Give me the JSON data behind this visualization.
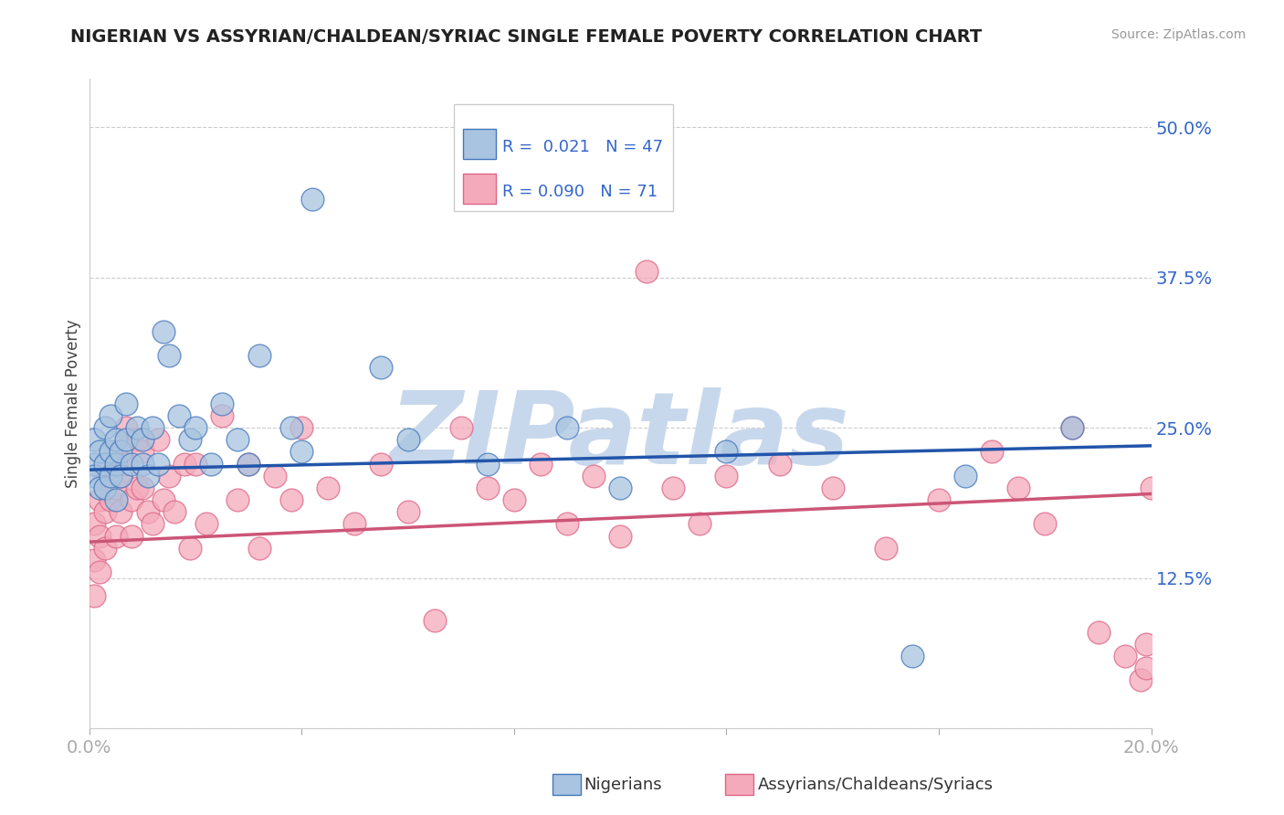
{
  "title": "NIGERIAN VS ASSYRIAN/CHALDEAN/SYRIAC SINGLE FEMALE POVERTY CORRELATION CHART",
  "source": "Source: ZipAtlas.com",
  "ylabel": "Single Female Poverty",
  "xlim": [
    0.0,
    0.2
  ],
  "ylim": [
    0.0,
    0.54
  ],
  "blue_R": 0.021,
  "blue_N": 47,
  "pink_R": 0.09,
  "pink_N": 71,
  "blue_color": "#A8C4E0",
  "pink_color": "#F4AABA",
  "blue_edge_color": "#4477BB",
  "pink_edge_color": "#DD6688",
  "blue_line_color": "#2255AA",
  "pink_line_color": "#CC5577",
  "watermark_color": "#C8D8EC",
  "legend_label_blue": "Nigerians",
  "legend_label_pink": "Assyrians/Chaldeans/Syriacs",
  "grid_color": "#CCCCCC",
  "background_color": "#FFFFFF",
  "axis_label_color": "#3366CC",
  "title_color": "#222222",
  "blue_trend": [
    0.215,
    0.235
  ],
  "pink_trend": [
    0.155,
    0.195
  ],
  "blue_dots_x": [
    0.001,
    0.001,
    0.001,
    0.002,
    0.002,
    0.003,
    0.003,
    0.003,
    0.004,
    0.004,
    0.004,
    0.005,
    0.005,
    0.005,
    0.006,
    0.006,
    0.007,
    0.007,
    0.008,
    0.009,
    0.01,
    0.01,
    0.011,
    0.012,
    0.013,
    0.014,
    0.015,
    0.017,
    0.019,
    0.02,
    0.023,
    0.025,
    0.028,
    0.03,
    0.032,
    0.038,
    0.04,
    0.042,
    0.055,
    0.06,
    0.075,
    0.09,
    0.1,
    0.12,
    0.155,
    0.165,
    0.185
  ],
  "blue_dots_y": [
    0.24,
    0.22,
    0.21,
    0.23,
    0.2,
    0.25,
    0.22,
    0.2,
    0.26,
    0.23,
    0.21,
    0.24,
    0.22,
    0.19,
    0.23,
    0.21,
    0.27,
    0.24,
    0.22,
    0.25,
    0.24,
    0.22,
    0.21,
    0.25,
    0.22,
    0.33,
    0.31,
    0.26,
    0.24,
    0.25,
    0.22,
    0.27,
    0.24,
    0.22,
    0.31,
    0.25,
    0.23,
    0.44,
    0.3,
    0.24,
    0.22,
    0.25,
    0.2,
    0.23,
    0.06,
    0.21,
    0.25
  ],
  "pink_dots_x": [
    0.001,
    0.001,
    0.001,
    0.002,
    0.002,
    0.002,
    0.003,
    0.003,
    0.003,
    0.004,
    0.004,
    0.005,
    0.005,
    0.005,
    0.006,
    0.006,
    0.007,
    0.007,
    0.008,
    0.008,
    0.009,
    0.009,
    0.01,
    0.01,
    0.011,
    0.012,
    0.013,
    0.014,
    0.015,
    0.016,
    0.018,
    0.019,
    0.02,
    0.022,
    0.025,
    0.028,
    0.03,
    0.032,
    0.035,
    0.038,
    0.04,
    0.045,
    0.05,
    0.055,
    0.06,
    0.065,
    0.07,
    0.075,
    0.08,
    0.085,
    0.09,
    0.095,
    0.1,
    0.105,
    0.11,
    0.115,
    0.12,
    0.13,
    0.14,
    0.15,
    0.16,
    0.17,
    0.175,
    0.18,
    0.185,
    0.19,
    0.195,
    0.198,
    0.199,
    0.199,
    0.2
  ],
  "pink_dots_y": [
    0.17,
    0.14,
    0.11,
    0.19,
    0.16,
    0.13,
    0.21,
    0.18,
    0.15,
    0.22,
    0.19,
    0.23,
    0.2,
    0.16,
    0.21,
    0.18,
    0.25,
    0.22,
    0.19,
    0.16,
    0.24,
    0.2,
    0.23,
    0.2,
    0.18,
    0.17,
    0.24,
    0.19,
    0.21,
    0.18,
    0.22,
    0.15,
    0.22,
    0.17,
    0.26,
    0.19,
    0.22,
    0.15,
    0.21,
    0.19,
    0.25,
    0.2,
    0.17,
    0.22,
    0.18,
    0.09,
    0.25,
    0.2,
    0.19,
    0.22,
    0.17,
    0.21,
    0.16,
    0.38,
    0.2,
    0.17,
    0.21,
    0.22,
    0.2,
    0.15,
    0.19,
    0.23,
    0.2,
    0.17,
    0.25,
    0.08,
    0.06,
    0.04,
    0.05,
    0.07,
    0.2
  ]
}
